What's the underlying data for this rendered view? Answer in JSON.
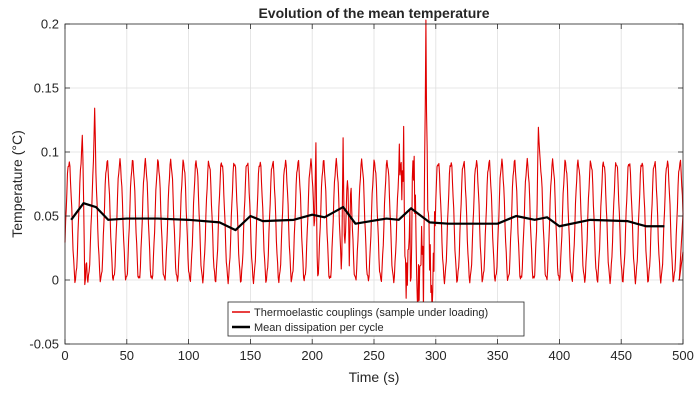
{
  "chart_data": {
    "type": "line",
    "title": "Evolution of the mean temperature",
    "xlabel": "Time (s)",
    "ylabel": "Temperature (°C)",
    "xlim": [
      0,
      500
    ],
    "ylim": [
      -0.05,
      0.2
    ],
    "xticks": [
      0,
      50,
      100,
      150,
      200,
      250,
      300,
      350,
      400,
      450,
      500
    ],
    "xtick_labels": [
      "0",
      "50",
      "100",
      "150",
      "200",
      "250",
      "300",
      "350",
      "400",
      "450",
      "500"
    ],
    "yticks": [
      -0.05,
      0,
      0.05,
      0.1,
      0.15,
      0.2
    ],
    "ytick_labels": [
      "-0.05",
      "0",
      "0.05",
      "0.1",
      "0.15",
      "0.2"
    ],
    "grid": true,
    "legend_position": "bottom-center",
    "series": [
      {
        "name": "Thermoelastic couplings (sample under loading)",
        "color": "#e00000",
        "style": "oscillation",
        "period_s": 10.3,
        "min": 0.0,
        "max": 0.092,
        "spikes": [
          {
            "x": 14,
            "y": 0.11
          },
          {
            "x": 16,
            "y": -0.005
          },
          {
            "x": 24,
            "y": 0.132
          },
          {
            "x": 203,
            "y": 0.108
          },
          {
            "x": 225,
            "y": 0.111
          },
          {
            "x": 230,
            "y": 0.01
          },
          {
            "x": 274,
            "y": 0.107
          },
          {
            "x": 280,
            "y": -0.01
          },
          {
            "x": 285,
            "y": -0.02
          },
          {
            "x": 290,
            "y": -0.01
          },
          {
            "x": 292,
            "y": 0.19
          },
          {
            "x": 297,
            "y": -0.02
          },
          {
            "x": 383,
            "y": 0.12
          }
        ]
      },
      {
        "name": "Mean dissipation per cycle",
        "color": "#000000",
        "x": [
          5,
          15,
          25,
          35,
          50,
          75,
          100,
          125,
          138,
          150,
          160,
          185,
          200,
          210,
          225,
          235,
          260,
          270,
          280,
          295,
          310,
          350,
          365,
          380,
          390,
          400,
          425,
          455,
          470,
          485
        ],
        "values": [
          0.047,
          0.06,
          0.057,
          0.047,
          0.048,
          0.048,
          0.047,
          0.045,
          0.039,
          0.05,
          0.046,
          0.047,
          0.051,
          0.049,
          0.057,
          0.044,
          0.048,
          0.047,
          0.056,
          0.045,
          0.044,
          0.044,
          0.05,
          0.047,
          0.049,
          0.042,
          0.047,
          0.046,
          0.042,
          0.042
        ]
      }
    ]
  }
}
